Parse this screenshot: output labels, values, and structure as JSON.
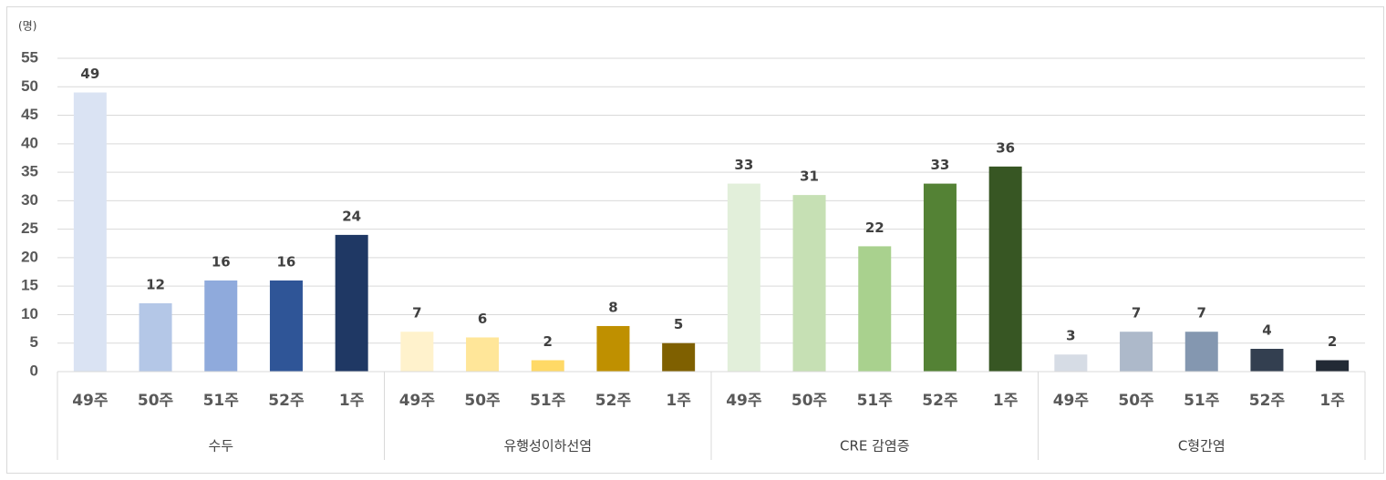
{
  "chart_data": {
    "type": "grouped-bar",
    "y_label": "(명)",
    "ylim": [
      0,
      55
    ],
    "yticks": [
      0,
      5,
      10,
      15,
      20,
      25,
      30,
      35,
      40,
      45,
      50,
      55
    ],
    "grid": true,
    "groups": [
      {
        "name": "수두",
        "categories": [
          "49주",
          "50주",
          "51주",
          "52주",
          "1주"
        ],
        "values": [
          49,
          12,
          16,
          16,
          24
        ],
        "colors": [
          "#dae3f3",
          "#b4c7e7",
          "#8faadc",
          "#2f5597",
          "#1f3864"
        ]
      },
      {
        "name": "유행성이하선염",
        "categories": [
          "49주",
          "50주",
          "51주",
          "52주",
          "1주"
        ],
        "values": [
          7,
          6,
          2,
          8,
          5
        ],
        "colors": [
          "#fff2cc",
          "#ffe699",
          "#ffd966",
          "#bf9000",
          "#7f6000"
        ]
      },
      {
        "name": "CRE 감염증",
        "categories": [
          "49주",
          "50주",
          "51주",
          "52주",
          "1주"
        ],
        "values": [
          33,
          31,
          22,
          33,
          36
        ],
        "colors": [
          "#e2efda",
          "#c6e0b4",
          "#a9d18e",
          "#548235",
          "#375623"
        ]
      },
      {
        "name": "C형간염",
        "categories": [
          "49주",
          "50주",
          "51주",
          "52주",
          "1주"
        ],
        "values": [
          3,
          7,
          7,
          4,
          2
        ],
        "colors": [
          "#d6dce5",
          "#adb9ca",
          "#8497b0",
          "#333f50",
          "#222a35"
        ]
      }
    ]
  }
}
